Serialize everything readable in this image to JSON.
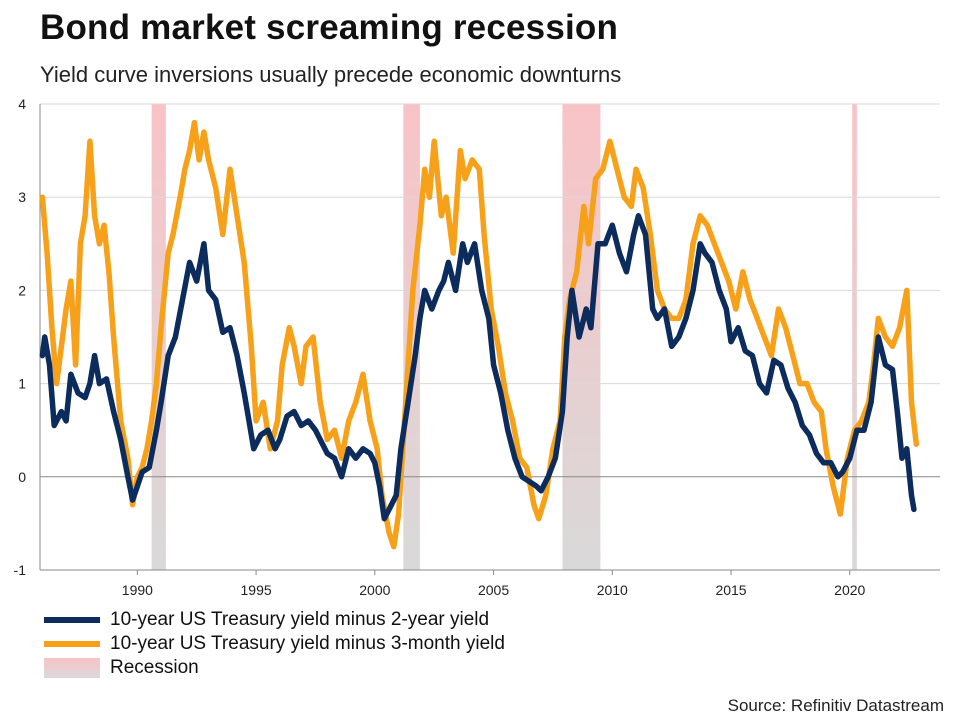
{
  "title": "Bond market screaming recession",
  "subtitle": "Yield curve inversions usually precede economic downturns",
  "source": "Source: Refinitiv Datastream",
  "colors": {
    "series_2y": "#0b2c5c",
    "series_3m": "#f7a11a",
    "recession_top": "#f9c3c6",
    "recession_bottom": "#d9d9d9",
    "grid": "#d9d9d9",
    "axis": "#888888"
  },
  "chart_data": {
    "type": "line",
    "title": "Bond market screaming recession",
    "subtitle": "Yield curve inversions usually precede economic downturns",
    "xlabel": "",
    "ylabel": "",
    "xlim": [
      1985.9,
      2023.8
    ],
    "ylim": [
      -1,
      4
    ],
    "x_ticks": [
      1990,
      1995,
      2000,
      2005,
      2010,
      2015,
      2020
    ],
    "y_ticks": [
      -1,
      0,
      1,
      2,
      3,
      4
    ],
    "grid": "horizontal",
    "legend_position": "bottom-left",
    "recessions": [
      {
        "start": 1990.6,
        "end": 1991.2
      },
      {
        "start": 2001.2,
        "end": 2001.9
      },
      {
        "start": 2007.9,
        "end": 2009.5
      },
      {
        "start": 2020.1,
        "end": 2020.3
      }
    ],
    "legend": [
      {
        "label": "10-year US Treasury yield minus 2-year yield",
        "kind": "line",
        "color": "#0b2c5c"
      },
      {
        "label": "10-year US Treasury yield minus 3-month yield",
        "kind": "line",
        "color": "#f7a11a"
      },
      {
        "label": "Recession",
        "kind": "area",
        "color": "#f9c3c6"
      }
    ],
    "series": [
      {
        "name": "10-year US Treasury yield minus 2-year yield",
        "color": "#0b2c5c",
        "points": [
          [
            1986.0,
            1.3
          ],
          [
            1986.1,
            1.5
          ],
          [
            1986.3,
            1.2
          ],
          [
            1986.5,
            0.55
          ],
          [
            1986.8,
            0.7
          ],
          [
            1987.0,
            0.6
          ],
          [
            1987.2,
            1.1
          ],
          [
            1987.5,
            0.9
          ],
          [
            1987.8,
            0.85
          ],
          [
            1988.0,
            1.0
          ],
          [
            1988.2,
            1.3
          ],
          [
            1988.4,
            1.0
          ],
          [
            1988.7,
            1.05
          ],
          [
            1989.0,
            0.7
          ],
          [
            1989.3,
            0.4
          ],
          [
            1989.6,
            0.0
          ],
          [
            1989.8,
            -0.25
          ],
          [
            1990.0,
            -0.1
          ],
          [
            1990.2,
            0.05
          ],
          [
            1990.5,
            0.1
          ],
          [
            1990.8,
            0.5
          ],
          [
            1991.0,
            0.8
          ],
          [
            1991.3,
            1.3
          ],
          [
            1991.6,
            1.5
          ],
          [
            1991.9,
            1.9
          ],
          [
            1992.2,
            2.3
          ],
          [
            1992.5,
            2.1
          ],
          [
            1992.8,
            2.5
          ],
          [
            1993.0,
            2.0
          ],
          [
            1993.3,
            1.9
          ],
          [
            1993.6,
            1.55
          ],
          [
            1993.9,
            1.6
          ],
          [
            1994.2,
            1.3
          ],
          [
            1994.5,
            0.9
          ],
          [
            1994.7,
            0.6
          ],
          [
            1994.9,
            0.3
          ],
          [
            1995.2,
            0.45
          ],
          [
            1995.5,
            0.5
          ],
          [
            1995.8,
            0.3
          ],
          [
            1996.0,
            0.4
          ],
          [
            1996.3,
            0.65
          ],
          [
            1996.6,
            0.7
          ],
          [
            1996.9,
            0.55
          ],
          [
            1997.2,
            0.6
          ],
          [
            1997.5,
            0.5
          ],
          [
            1997.8,
            0.35
          ],
          [
            1998.0,
            0.25
          ],
          [
            1998.3,
            0.2
          ],
          [
            1998.6,
            0.0
          ],
          [
            1998.9,
            0.3
          ],
          [
            1999.2,
            0.2
          ],
          [
            1999.5,
            0.3
          ],
          [
            1999.8,
            0.25
          ],
          [
            2000.0,
            0.15
          ],
          [
            2000.2,
            -0.1
          ],
          [
            2000.4,
            -0.45
          ],
          [
            2000.6,
            -0.35
          ],
          [
            2000.9,
            -0.2
          ],
          [
            2001.1,
            0.3
          ],
          [
            2001.4,
            0.8
          ],
          [
            2001.7,
            1.3
          ],
          [
            2001.9,
            1.7
          ],
          [
            2002.1,
            2.0
          ],
          [
            2002.4,
            1.8
          ],
          [
            2002.7,
            2.0
          ],
          [
            2002.9,
            2.1
          ],
          [
            2003.1,
            2.3
          ],
          [
            2003.4,
            2.0
          ],
          [
            2003.7,
            2.5
          ],
          [
            2003.9,
            2.3
          ],
          [
            2004.2,
            2.5
          ],
          [
            2004.5,
            2.0
          ],
          [
            2004.8,
            1.7
          ],
          [
            2005.0,
            1.2
          ],
          [
            2005.3,
            0.9
          ],
          [
            2005.6,
            0.5
          ],
          [
            2005.9,
            0.2
          ],
          [
            2006.2,
            0.0
          ],
          [
            2006.5,
            -0.05
          ],
          [
            2006.8,
            -0.1
          ],
          [
            2007.0,
            -0.15
          ],
          [
            2007.3,
            0.0
          ],
          [
            2007.6,
            0.2
          ],
          [
            2007.9,
            0.7
          ],
          [
            2008.1,
            1.5
          ],
          [
            2008.3,
            2.0
          ],
          [
            2008.6,
            1.5
          ],
          [
            2008.9,
            1.8
          ],
          [
            2009.1,
            1.6
          ],
          [
            2009.4,
            2.5
          ],
          [
            2009.7,
            2.5
          ],
          [
            2010.0,
            2.7
          ],
          [
            2010.3,
            2.4
          ],
          [
            2010.6,
            2.2
          ],
          [
            2010.9,
            2.6
          ],
          [
            2011.1,
            2.8
          ],
          [
            2011.4,
            2.6
          ],
          [
            2011.7,
            1.8
          ],
          [
            2011.9,
            1.7
          ],
          [
            2012.2,
            1.8
          ],
          [
            2012.5,
            1.4
          ],
          [
            2012.8,
            1.5
          ],
          [
            2013.1,
            1.7
          ],
          [
            2013.4,
            2.0
          ],
          [
            2013.7,
            2.5
          ],
          [
            2013.9,
            2.4
          ],
          [
            2014.2,
            2.3
          ],
          [
            2014.5,
            2.0
          ],
          [
            2014.8,
            1.8
          ],
          [
            2015.0,
            1.45
          ],
          [
            2015.3,
            1.6
          ],
          [
            2015.6,
            1.35
          ],
          [
            2015.9,
            1.3
          ],
          [
            2016.2,
            1.0
          ],
          [
            2016.5,
            0.9
          ],
          [
            2016.8,
            1.25
          ],
          [
            2017.1,
            1.2
          ],
          [
            2017.4,
            0.95
          ],
          [
            2017.7,
            0.8
          ],
          [
            2018.0,
            0.55
          ],
          [
            2018.3,
            0.45
          ],
          [
            2018.6,
            0.25
          ],
          [
            2018.9,
            0.15
          ],
          [
            2019.2,
            0.15
          ],
          [
            2019.5,
            0.0
          ],
          [
            2019.7,
            0.05
          ],
          [
            2020.0,
            0.2
          ],
          [
            2020.3,
            0.5
          ],
          [
            2020.6,
            0.5
          ],
          [
            2020.9,
            0.8
          ],
          [
            2021.2,
            1.5
          ],
          [
            2021.5,
            1.2
          ],
          [
            2021.8,
            1.15
          ],
          [
            2022.0,
            0.7
          ],
          [
            2022.2,
            0.2
          ],
          [
            2022.4,
            0.3
          ],
          [
            2022.6,
            -0.2
          ],
          [
            2022.7,
            -0.35
          ]
        ]
      },
      {
        "name": "10-year US Treasury yield minus 3-month yield",
        "color": "#f7a11a",
        "points": [
          [
            1986.0,
            3.0
          ],
          [
            1986.2,
            2.4
          ],
          [
            1986.4,
            1.6
          ],
          [
            1986.6,
            1.0
          ],
          [
            1986.8,
            1.4
          ],
          [
            1987.0,
            1.8
          ],
          [
            1987.2,
            2.1
          ],
          [
            1987.4,
            1.2
          ],
          [
            1987.6,
            2.5
          ],
          [
            1987.8,
            2.8
          ],
          [
            1988.0,
            3.6
          ],
          [
            1988.2,
            2.8
          ],
          [
            1988.4,
            2.5
          ],
          [
            1988.6,
            2.7
          ],
          [
            1988.8,
            2.2
          ],
          [
            1989.0,
            1.5
          ],
          [
            1989.3,
            0.6
          ],
          [
            1989.6,
            0.2
          ],
          [
            1989.8,
            -0.3
          ],
          [
            1990.0,
            0.0
          ],
          [
            1990.2,
            0.1
          ],
          [
            1990.4,
            0.3
          ],
          [
            1990.6,
            0.6
          ],
          [
            1990.8,
            1.0
          ],
          [
            1991.0,
            1.6
          ],
          [
            1991.3,
            2.4
          ],
          [
            1991.5,
            2.6
          ],
          [
            1991.8,
            3.0
          ],
          [
            1992.0,
            3.3
          ],
          [
            1992.2,
            3.5
          ],
          [
            1992.4,
            3.8
          ],
          [
            1992.6,
            3.4
          ],
          [
            1992.8,
            3.7
          ],
          [
            1993.0,
            3.4
          ],
          [
            1993.3,
            3.1
          ],
          [
            1993.6,
            2.6
          ],
          [
            1993.9,
            3.3
          ],
          [
            1994.2,
            2.8
          ],
          [
            1994.5,
            2.3
          ],
          [
            1994.8,
            1.4
          ],
          [
            1995.0,
            0.6
          ],
          [
            1995.3,
            0.8
          ],
          [
            1995.6,
            0.3
          ],
          [
            1995.9,
            0.6
          ],
          [
            1996.1,
            1.2
          ],
          [
            1996.4,
            1.6
          ],
          [
            1996.6,
            1.4
          ],
          [
            1996.9,
            1.0
          ],
          [
            1997.1,
            1.4
          ],
          [
            1997.4,
            1.5
          ],
          [
            1997.7,
            0.8
          ],
          [
            1998.0,
            0.4
          ],
          [
            1998.3,
            0.5
          ],
          [
            1998.6,
            0.2
          ],
          [
            1998.9,
            0.6
          ],
          [
            1999.2,
            0.8
          ],
          [
            1999.5,
            1.1
          ],
          [
            1999.8,
            0.6
          ],
          [
            2000.1,
            0.3
          ],
          [
            2000.3,
            -0.2
          ],
          [
            2000.6,
            -0.6
          ],
          [
            2000.8,
            -0.75
          ],
          [
            2001.0,
            -0.4
          ],
          [
            2001.3,
            0.8
          ],
          [
            2001.6,
            2.0
          ],
          [
            2001.9,
            2.7
          ],
          [
            2002.1,
            3.3
          ],
          [
            2002.3,
            3.0
          ],
          [
            2002.5,
            3.6
          ],
          [
            2002.8,
            2.8
          ],
          [
            2003.0,
            3.0
          ],
          [
            2003.3,
            2.4
          ],
          [
            2003.6,
            3.5
          ],
          [
            2003.8,
            3.2
          ],
          [
            2004.1,
            3.4
          ],
          [
            2004.4,
            3.3
          ],
          [
            2004.6,
            2.6
          ],
          [
            2004.9,
            1.8
          ],
          [
            2005.2,
            1.4
          ],
          [
            2005.5,
            0.9
          ],
          [
            2005.8,
            0.6
          ],
          [
            2006.1,
            0.2
          ],
          [
            2006.4,
            0.1
          ],
          [
            2006.7,
            -0.3
          ],
          [
            2006.9,
            -0.45
          ],
          [
            2007.2,
            -0.2
          ],
          [
            2007.5,
            0.3
          ],
          [
            2007.8,
            0.6
          ],
          [
            2008.0,
            1.5
          ],
          [
            2008.2,
            1.9
          ],
          [
            2008.5,
            2.2
          ],
          [
            2008.8,
            2.9
          ],
          [
            2009.0,
            2.5
          ],
          [
            2009.3,
            3.2
          ],
          [
            2009.6,
            3.3
          ],
          [
            2009.9,
            3.6
          ],
          [
            2010.2,
            3.3
          ],
          [
            2010.5,
            3.0
          ],
          [
            2010.8,
            2.9
          ],
          [
            2011.0,
            3.3
          ],
          [
            2011.3,
            3.1
          ],
          [
            2011.6,
            2.6
          ],
          [
            2011.9,
            2.0
          ],
          [
            2012.2,
            1.8
          ],
          [
            2012.5,
            1.7
          ],
          [
            2012.8,
            1.7
          ],
          [
            2013.1,
            1.9
          ],
          [
            2013.4,
            2.5
          ],
          [
            2013.7,
            2.8
          ],
          [
            2014.0,
            2.7
          ],
          [
            2014.3,
            2.5
          ],
          [
            2014.6,
            2.3
          ],
          [
            2014.9,
            2.1
          ],
          [
            2015.2,
            1.8
          ],
          [
            2015.5,
            2.2
          ],
          [
            2015.8,
            1.9
          ],
          [
            2016.1,
            1.7
          ],
          [
            2016.4,
            1.5
          ],
          [
            2016.7,
            1.3
          ],
          [
            2017.0,
            1.8
          ],
          [
            2017.3,
            1.6
          ],
          [
            2017.6,
            1.3
          ],
          [
            2017.9,
            1.0
          ],
          [
            2018.2,
            1.0
          ],
          [
            2018.5,
            0.8
          ],
          [
            2018.8,
            0.7
          ],
          [
            2019.0,
            0.3
          ],
          [
            2019.3,
            -0.1
          ],
          [
            2019.6,
            -0.4
          ],
          [
            2019.9,
            0.2
          ],
          [
            2020.2,
            0.5
          ],
          [
            2020.5,
            0.6
          ],
          [
            2020.8,
            0.8
          ],
          [
            2021.0,
            1.2
          ],
          [
            2021.2,
            1.7
          ],
          [
            2021.5,
            1.5
          ],
          [
            2021.8,
            1.4
          ],
          [
            2022.1,
            1.6
          ],
          [
            2022.4,
            2.0
          ],
          [
            2022.6,
            0.8
          ],
          [
            2022.8,
            0.35
          ]
        ]
      }
    ]
  }
}
